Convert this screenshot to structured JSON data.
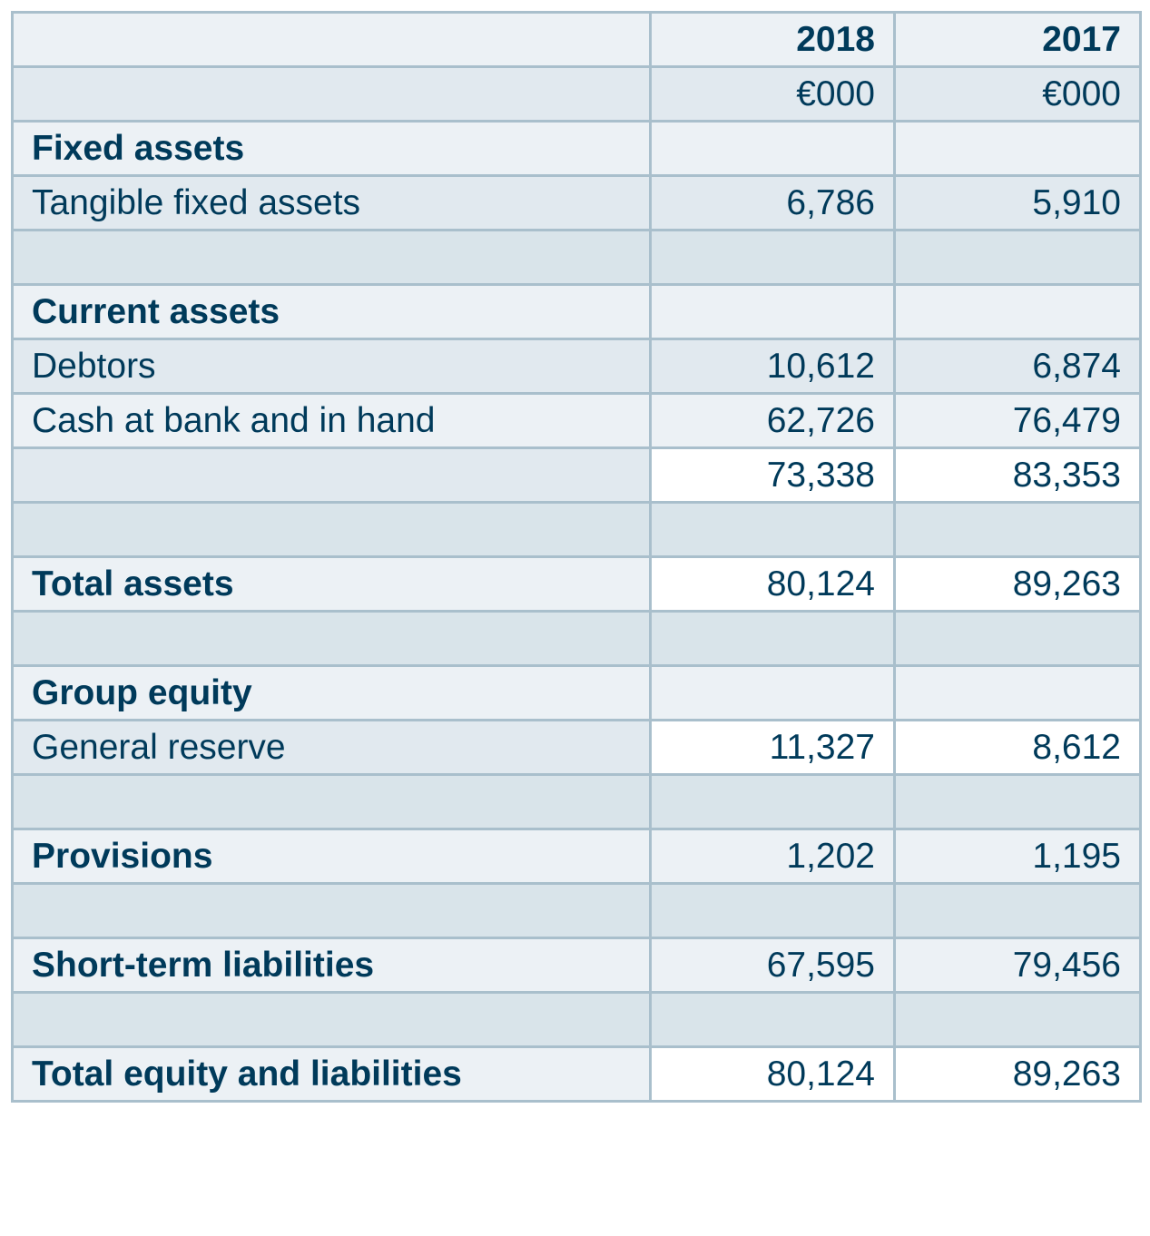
{
  "header": {
    "years": [
      "2018",
      "2017"
    ],
    "units": [
      "€000",
      "€000"
    ]
  },
  "rows": [
    {
      "label": "Fixed assets",
      "v2018": "",
      "v2017": "",
      "bold": true,
      "shade": "light"
    },
    {
      "label": "Tangible fixed assets",
      "v2018": "6,786",
      "v2017": "5,910",
      "bold": false,
      "shade": "mid"
    },
    {
      "label": "",
      "v2018": "",
      "v2017": "",
      "bold": false,
      "shade": "dark"
    },
    {
      "label": "Current assets",
      "v2018": "",
      "v2017": "",
      "bold": true,
      "shade": "light"
    },
    {
      "label": "Debtors",
      "v2018": "10,612",
      "v2017": "6,874",
      "bold": false,
      "shade": "mid"
    },
    {
      "label": "Cash at bank and in hand",
      "v2018": "62,726",
      "v2017": "76,479",
      "bold": false,
      "shade": "light"
    },
    {
      "label": "",
      "v2018": "73,338",
      "v2017": "83,353",
      "bold": false,
      "shade": "mid",
      "white": true
    },
    {
      "label": "",
      "v2018": "",
      "v2017": "",
      "bold": false,
      "shade": "dark"
    },
    {
      "label": "Total assets",
      "v2018": "80,124",
      "v2017": "89,263",
      "bold": true,
      "shade": "light",
      "white": true
    },
    {
      "label": "",
      "v2018": "",
      "v2017": "",
      "bold": false,
      "shade": "dark"
    },
    {
      "label": "Group equity",
      "v2018": "",
      "v2017": "",
      "bold": true,
      "shade": "light"
    },
    {
      "label": "General reserve",
      "v2018": "11,327",
      "v2017": "8,612",
      "bold": false,
      "shade": "mid",
      "white": true
    },
    {
      "label": "",
      "v2018": "",
      "v2017": "",
      "bold": false,
      "shade": "dark"
    },
    {
      "label": "Provisions",
      "v2018": "1,202",
      "v2017": "1,195",
      "bold": true,
      "shade": "light"
    },
    {
      "label": "",
      "v2018": "",
      "v2017": "",
      "bold": false,
      "shade": "dark"
    },
    {
      "label": "Short-term liabilities",
      "v2018": "67,595",
      "v2017": "79,456",
      "bold": true,
      "shade": "light"
    },
    {
      "label": "",
      "v2018": "",
      "v2017": "",
      "bold": false,
      "shade": "dark"
    },
    {
      "label": "Total equity and liabilities",
      "v2018": "80,124",
      "v2017": "89,263",
      "bold": true,
      "shade": "light",
      "white": true
    }
  ]
}
